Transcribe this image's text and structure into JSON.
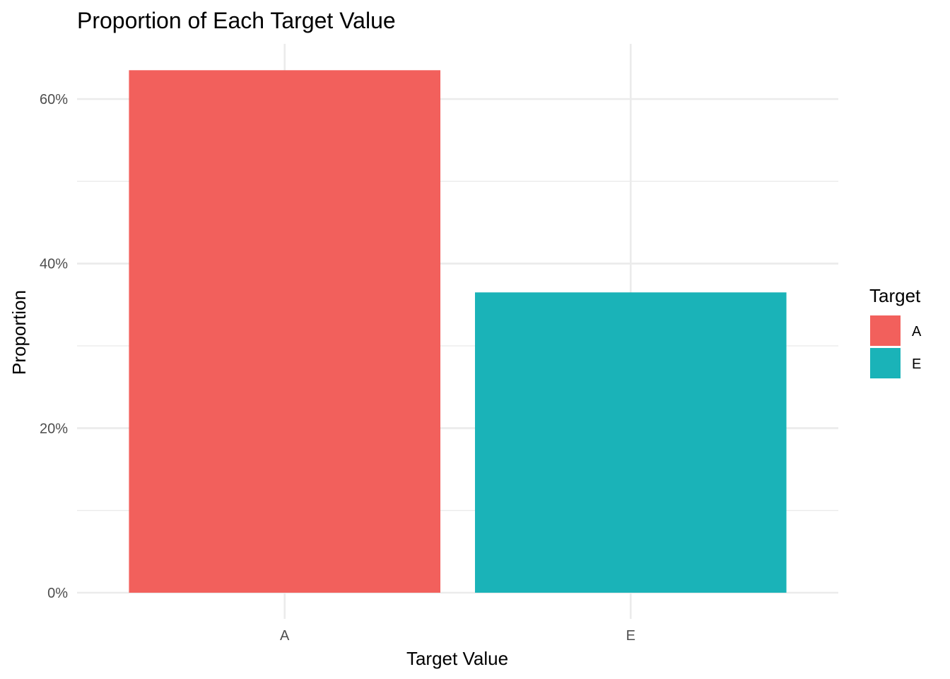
{
  "chart_data": {
    "type": "bar",
    "title": "Proportion of Each Target Value",
    "xlabel": "Target Value",
    "ylabel": "Proportion",
    "categories": [
      "A",
      "E"
    ],
    "values": [
      0.635,
      0.365
    ],
    "colors": [
      "#F2605C",
      "#1AB3B8"
    ],
    "ylim": [
      0,
      0.65
    ],
    "y_ticks": [
      {
        "value": 0.0,
        "label": "0%"
      },
      {
        "value": 0.2,
        "label": "20%"
      },
      {
        "value": 0.4,
        "label": "40%"
      },
      {
        "value": 0.6,
        "label": "60%"
      }
    ],
    "y_minor_ticks": [
      0.1,
      0.3,
      0.5
    ],
    "grid": true,
    "legend": {
      "title": "Target",
      "position": "right",
      "entries": [
        {
          "label": "A",
          "color": "#F2605C"
        },
        {
          "label": "E",
          "color": "#1AB3B8"
        }
      ]
    }
  }
}
